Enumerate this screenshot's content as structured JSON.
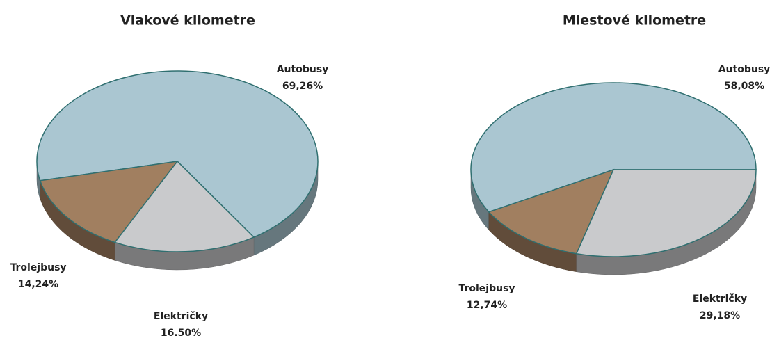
{
  "chart_data": [
    {
      "type": "pie",
      "title": "Vlakové kilometre",
      "categories": [
        "Autobusy",
        "Trolejbusy",
        "Električky"
      ],
      "values": [
        69.26,
        14.24,
        16.5
      ],
      "value_labels": [
        "69,26%",
        "14,24%",
        "16.50%"
      ],
      "colors": [
        "#aac6d1",
        "#a17f60",
        "#c9cacc"
      ]
    },
    {
      "type": "pie",
      "title": "Miestové kilometre",
      "categories": [
        "Autobusy",
        "Trolejbusy",
        "Električky"
      ],
      "values": [
        58.08,
        12.74,
        29.18
      ],
      "value_labels": [
        "58,08%",
        "12,74%",
        "29,18%"
      ],
      "colors": [
        "#aac6d1",
        "#a17f60",
        "#c9cacc"
      ]
    }
  ]
}
